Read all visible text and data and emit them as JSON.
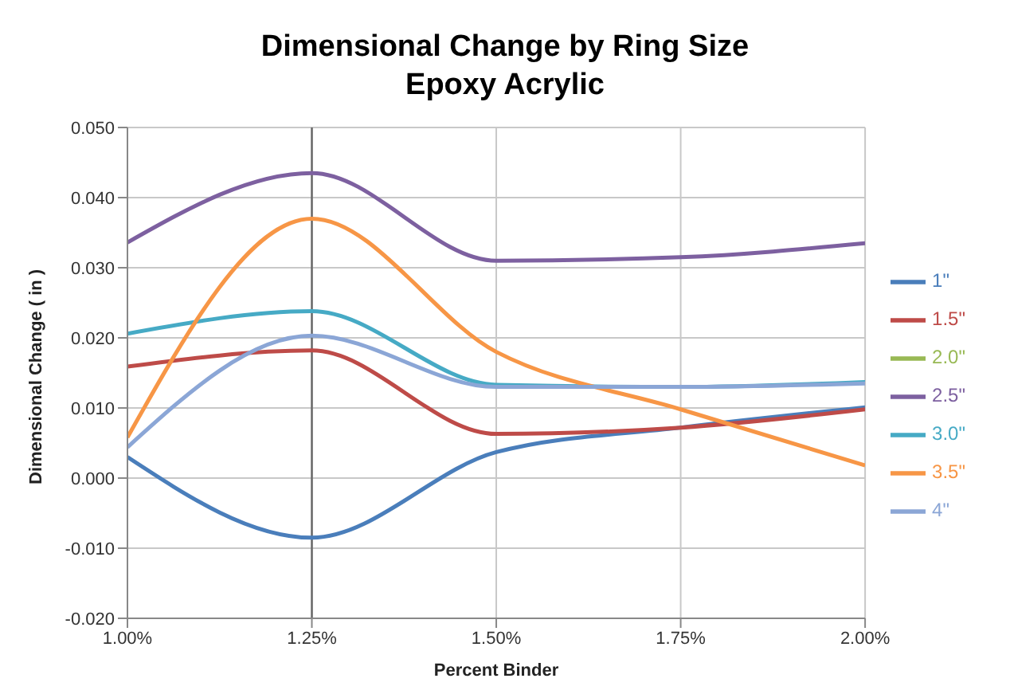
{
  "chart_data": {
    "type": "line",
    "title": "Dimensional Change by Ring Size",
    "subtitle": "Epoxy Acrylic",
    "xlabel": "Percent Binder",
    "ylabel": "Dimensional Change ( in )",
    "x": [
      1.0,
      1.25,
      1.5,
      1.75,
      2.0
    ],
    "series": [
      {
        "name": "1\"",
        "color": "#4a7ebb",
        "values": [
          0.003,
          -0.0085,
          0.0037,
          0.0072,
          0.0101
        ]
      },
      {
        "name": "1.5\"",
        "color": "#be4b48",
        "values": [
          0.0159,
          0.0182,
          0.0063,
          0.0072,
          0.0098
        ]
      },
      {
        "name": "2.0\"",
        "color": "#98b954",
        "values": [
          null,
          null,
          null,
          null,
          null
        ]
      },
      {
        "name": "2.5\"",
        "color": "#7d60a0",
        "values": [
          0.0336,
          0.0435,
          0.031,
          0.0315,
          0.0335
        ]
      },
      {
        "name": "3.0\"",
        "color": "#46aac5",
        "values": [
          0.0206,
          0.0238,
          0.0133,
          0.013,
          0.0137
        ]
      },
      {
        "name": "3.5\"",
        "color": "#f79646",
        "values": [
          0.0058,
          0.037,
          0.018,
          0.0098,
          0.0018
        ]
      },
      {
        "name": "4\"",
        "color": "#8ba6d6",
        "values": [
          0.0044,
          0.0203,
          0.013,
          0.013,
          0.0135
        ]
      }
    ],
    "xlim": [
      1.0,
      2.0
    ],
    "xticks": [
      {
        "value": 1.0,
        "label": "1.00%"
      },
      {
        "value": 1.25,
        "label": "1.25%"
      },
      {
        "value": 1.5,
        "label": "1.50%"
      },
      {
        "value": 1.75,
        "label": "1.75%"
      },
      {
        "value": 2.0,
        "label": "2.00%"
      }
    ],
    "ylim": [
      -0.02,
      0.05
    ],
    "yticks": [
      {
        "value": -0.02,
        "label": "-0.020"
      },
      {
        "value": -0.01,
        "label": "-0.010"
      },
      {
        "value": 0,
        "label": "0.000"
      },
      {
        "value": 0.01,
        "label": "0.010"
      },
      {
        "value": 0.02,
        "label": "0.020"
      },
      {
        "value": 0.03,
        "label": "0.030"
      },
      {
        "value": 0.04,
        "label": "0.040"
      },
      {
        "value": 0.05,
        "label": "0.050"
      }
    ],
    "ref_lines": [
      {
        "axis": "x",
        "value": 1.25,
        "color": "#666666"
      }
    ],
    "grid": true,
    "legend": "right",
    "marker": "none",
    "line_style": "solid"
  }
}
